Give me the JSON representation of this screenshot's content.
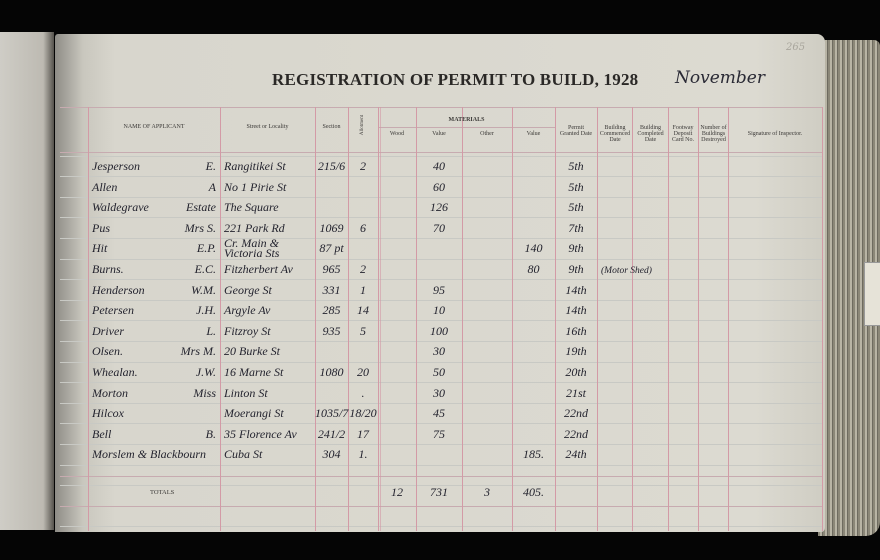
{
  "page_number": "265",
  "title": "REGISTRATION OF PERMIT TO BUILD, 1928",
  "month": "November",
  "headers": {
    "name": "NAME OF APPLICANT",
    "street": "Street or Locality",
    "section": "Section",
    "allotment": "Allotment",
    "materials": "MATERIALS",
    "wood": "Wood",
    "wood_value": "Value",
    "other": "Other",
    "other_value": "Value",
    "permit_granted": "Permit Granted Date",
    "commenced": "Building Commenced Date",
    "completed": "Building Completed Date",
    "footway": "Footway Deposit Card No.",
    "destroyed": "Number of Buildings Destroyed",
    "signature": "Signature of Inspector."
  },
  "rows": [
    {
      "name": "Jesperson",
      "initials": "E.",
      "street": "Rangitikei St",
      "section": "215/6",
      "allotment": "2",
      "wood": "",
      "wood_value": "40",
      "other": "",
      "other_value": "",
      "permit": "5th",
      "commenced": ""
    },
    {
      "name": "Allen",
      "initials": "A",
      "street": "No 1 Pirie St",
      "section": "",
      "allotment": "",
      "wood": "",
      "wood_value": "60",
      "other": "",
      "other_value": "",
      "permit": "5th",
      "commenced": ""
    },
    {
      "name": "Waldegrave",
      "initials": "Estate",
      "street": "The Square",
      "section": "",
      "allotment": "",
      "wood": "",
      "wood_value": "126",
      "other": "",
      "other_value": "",
      "permit": "5th",
      "commenced": ""
    },
    {
      "name": "Pus",
      "initials": "Mrs S.",
      "street": "221 Park Rd",
      "section": "1069",
      "allotment": "6",
      "wood": "",
      "wood_value": "70",
      "other": "",
      "other_value": "",
      "permit": "7th",
      "commenced": ""
    },
    {
      "name": "Hit",
      "initials": "E.P.",
      "street": "Cr. Main & Victoria Sts",
      "section": "87 pt",
      "allotment": "",
      "wood": "",
      "wood_value": "",
      "other": "",
      "other_value": "140",
      "permit": "9th",
      "commenced": ""
    },
    {
      "name": "Burns.",
      "initials": "E.C.",
      "street": "Fitzherbert Av",
      "section": "965",
      "allotment": "2",
      "wood": "",
      "wood_value": "",
      "other": "",
      "other_value": "80",
      "permit": "9th",
      "commenced": "(Motor Shed)"
    },
    {
      "name": "Henderson",
      "initials": "W.M.",
      "street": "George St",
      "section": "331",
      "allotment": "1",
      "wood": "",
      "wood_value": "95",
      "other": "",
      "other_value": "",
      "permit": "14th",
      "commenced": ""
    },
    {
      "name": "Petersen",
      "initials": "J.H.",
      "street": "Argyle Av",
      "section": "285",
      "allotment": "14",
      "wood": "",
      "wood_value": "10",
      "other": "",
      "other_value": "",
      "permit": "14th",
      "commenced": ""
    },
    {
      "name": "Driver",
      "initials": "L.",
      "street": "Fitzroy St",
      "section": "935",
      "allotment": "5",
      "wood": "",
      "wood_value": "100",
      "other": "",
      "other_value": "",
      "permit": "16th",
      "commenced": ""
    },
    {
      "name": "Olsen.",
      "initials": "Mrs M.",
      "street": "20 Burke St",
      "section": "",
      "allotment": "",
      "wood": "",
      "wood_value": "30",
      "other": "",
      "other_value": "",
      "permit": "19th",
      "commenced": ""
    },
    {
      "name": "Whealan.",
      "initials": "J.W.",
      "street": "16 Marne St",
      "section": "1080",
      "allotment": "20",
      "wood": "",
      "wood_value": "50",
      "other": "",
      "other_value": "",
      "permit": "20th",
      "commenced": ""
    },
    {
      "name": "Morton",
      "initials": "Miss",
      "street": "Linton St",
      "section": "",
      "allotment": ".",
      "wood": "",
      "wood_value": "30",
      "other": "",
      "other_value": "",
      "permit": "21st",
      "commenced": ""
    },
    {
      "name": "Hilcox",
      "initials": "",
      "street": "Moerangi St",
      "section": "1035/7",
      "allotment": "18/20",
      "wood": "",
      "wood_value": "45",
      "other": "",
      "other_value": "",
      "permit": "22nd",
      "commenced": ""
    },
    {
      "name": "Bell",
      "initials": "B.",
      "street": "35 Florence Av",
      "section": "241/2",
      "allotment": "17",
      "wood": "",
      "wood_value": "75",
      "other": "",
      "other_value": "",
      "permit": "22nd",
      "commenced": ""
    },
    {
      "name": "Morslem & Blackbourn",
      "initials": "",
      "street": "Cuba St",
      "section": "304",
      "allotment": "1.",
      "wood": "",
      "wood_value": "",
      "other": "",
      "other_value": "185.",
      "permit": "24th",
      "commenced": ""
    }
  ],
  "totals": {
    "label": "TOTALS",
    "wood": "12",
    "wood_value": "731",
    "other": "3",
    "other_value": "405."
  }
}
